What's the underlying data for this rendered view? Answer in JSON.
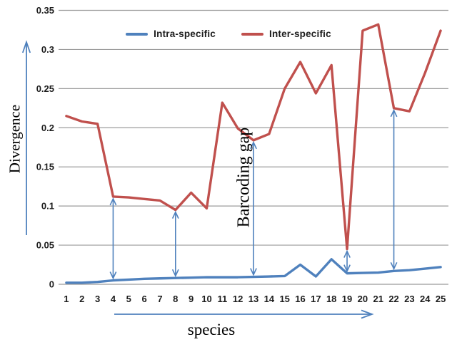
{
  "chart_data": {
    "type": "line",
    "xlabel": "species",
    "ylabel": "Divergence",
    "annotation": "Barcoding gap",
    "categories": [
      1,
      2,
      3,
      4,
      5,
      6,
      7,
      8,
      9,
      10,
      11,
      12,
      13,
      14,
      15,
      16,
      17,
      18,
      19,
      20,
      21,
      22,
      23,
      24,
      25
    ],
    "series": [
      {
        "name": "Intra-specific",
        "color": "#4F81BD",
        "values": [
          0.002,
          0.002,
          0.003,
          0.005,
          0.006,
          0.007,
          0.0075,
          0.008,
          0.0085,
          0.009,
          0.009,
          0.009,
          0.0095,
          0.01,
          0.0105,
          0.025,
          0.01,
          0.032,
          0.014,
          0.0145,
          0.015,
          0.017,
          0.018,
          0.02,
          0.022
        ]
      },
      {
        "name": "Inter-specific",
        "color": "#C0504D",
        "values": [
          0.215,
          0.208,
          0.205,
          0.112,
          0.111,
          0.109,
          0.107,
          0.095,
          0.117,
          0.097,
          0.232,
          0.199,
          0.184,
          0.192,
          0.25,
          0.284,
          0.244,
          0.28,
          0.045,
          0.324,
          0.332,
          0.225,
          0.221,
          0.27,
          0.324
        ]
      }
    ],
    "ylim": [
      0,
      0.35
    ],
    "yticks": {
      "values": [
        0,
        0.05,
        0.1,
        0.15,
        0.2,
        0.25,
        0.3,
        0.35
      ],
      "labels": [
        "0",
        "0.05",
        "0.1",
        "0.15",
        "0.2",
        "0.25",
        "0.3",
        "0.35"
      ]
    },
    "gap_arrows_at_species": [
      4,
      8,
      13,
      19,
      22
    ],
    "grid": true,
    "legend_position": "top-center",
    "accent_color": "#4F81BD",
    "gridline_color": "#9B9B9B",
    "text_color": "#1c1c1c"
  }
}
